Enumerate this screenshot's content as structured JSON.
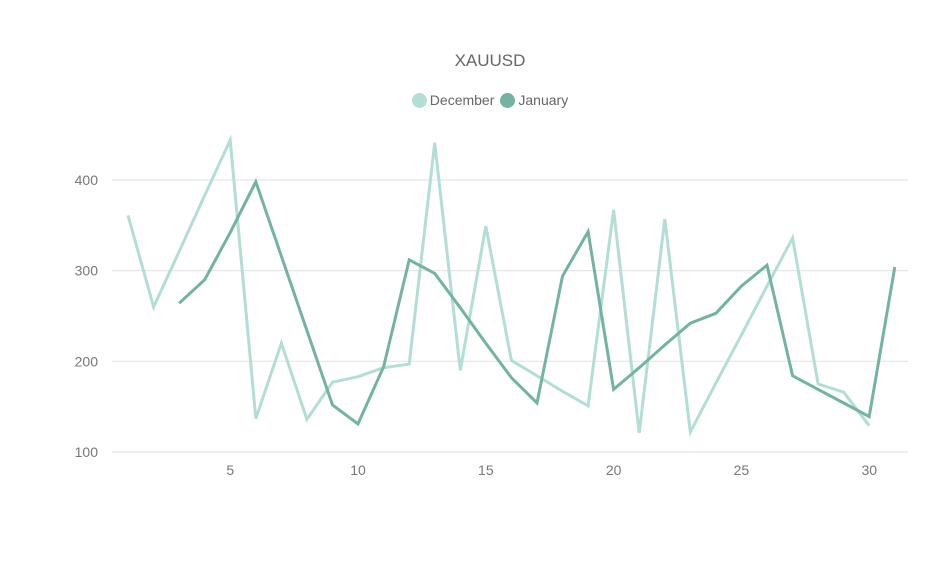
{
  "chart_data": {
    "type": "line",
    "title": "XAUUSD",
    "xlabel": "",
    "ylabel": "",
    "x": [
      1,
      2,
      3,
      4,
      5,
      6,
      7,
      8,
      9,
      10,
      11,
      12,
      13,
      14,
      15,
      16,
      17,
      18,
      19,
      20,
      21,
      22,
      23,
      24,
      25,
      26,
      27,
      28,
      29,
      30,
      31
    ],
    "x_ticks": [
      5,
      10,
      15,
      20,
      25,
      30
    ],
    "y_ticks": [
      100,
      200,
      300,
      400
    ],
    "ylim": [
      100,
      400
    ],
    "grid": "horizontal",
    "legend_position": "top",
    "series": [
      {
        "name": "December",
        "color": "#b4ddd6",
        "values": [
          361,
          260,
          321,
          383,
          444,
          137,
          220,
          136,
          177,
          183,
          193,
          197,
          441,
          190,
          349,
          201,
          184,
          167,
          151,
          367,
          121,
          357,
          122,
          176,
          229,
          283,
          336,
          175,
          166,
          129,
          null
        ]
      },
      {
        "name": "January",
        "color": "#74b3a4",
        "values": [
          null,
          null,
          264,
          290,
          342,
          398,
          316,
          234,
          152,
          131,
          194,
          312,
          297,
          259,
          220,
          182,
          154,
          294,
          343,
          169,
          193,
          218,
          242,
          253,
          283,
          306,
          184,
          169,
          154,
          139,
          304
        ]
      }
    ]
  },
  "labels": {
    "title": "XAUUSD",
    "legend": [
      {
        "label": "December",
        "color": "#b4ddd6"
      },
      {
        "label": "January",
        "color": "#74b3a4"
      }
    ]
  }
}
